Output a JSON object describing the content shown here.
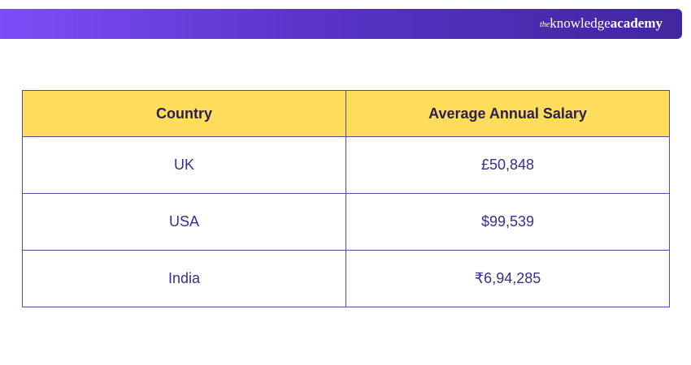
{
  "banner": {
    "brand_prefix": "the",
    "brand_knowledge": "knowledge",
    "brand_academy": "academy",
    "gradient_start": "#7d4df7",
    "gradient_end": "#40269e"
  },
  "table": {
    "header_bg": "#ffdd5c",
    "text_color": "#3d2c8d",
    "columns": [
      "Country",
      "Average Annual Salary"
    ],
    "rows": [
      {
        "country": "UK",
        "salary": "£50,848"
      },
      {
        "country": "USA",
        "salary": "$99,539"
      },
      {
        "country": "India",
        "salary": "₹6,94,285"
      }
    ]
  }
}
